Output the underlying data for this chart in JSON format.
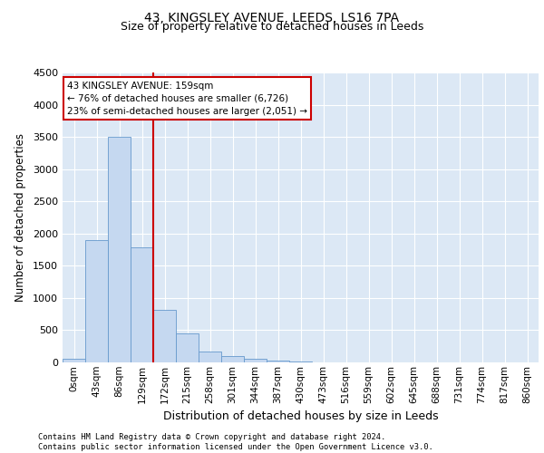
{
  "title1": "43, KINGSLEY AVENUE, LEEDS, LS16 7PA",
  "title2": "Size of property relative to detached houses in Leeds",
  "xlabel": "Distribution of detached houses by size in Leeds",
  "ylabel": "Number of detached properties",
  "bar_labels": [
    "0sqm",
    "43sqm",
    "86sqm",
    "129sqm",
    "172sqm",
    "215sqm",
    "258sqm",
    "301sqm",
    "344sqm",
    "387sqm",
    "430sqm",
    "473sqm",
    "516sqm",
    "559sqm",
    "602sqm",
    "645sqm",
    "688sqm",
    "731sqm",
    "774sqm",
    "817sqm",
    "860sqm"
  ],
  "bar_values": [
    50,
    1900,
    3500,
    1780,
    820,
    450,
    170,
    100,
    55,
    30,
    15,
    0,
    0,
    0,
    0,
    0,
    0,
    0,
    0,
    0,
    0
  ],
  "bar_color": "#c5d8f0",
  "bar_edge_color": "#6699cc",
  "vline_index": 4,
  "vline_color": "#cc0000",
  "annotation_text": "43 KINGSLEY AVENUE: 159sqm\n← 76% of detached houses are smaller (6,726)\n23% of semi-detached houses are larger (2,051) →",
  "annotation_box_facecolor": "#ffffff",
  "annotation_box_edgecolor": "#cc0000",
  "ylim": [
    0,
    4500
  ],
  "yticks": [
    0,
    500,
    1000,
    1500,
    2000,
    2500,
    3000,
    3500,
    4000,
    4500
  ],
  "background_color": "#dce8f5",
  "grid_color": "#ffffff",
  "title1_fontsize": 10,
  "title2_fontsize": 9,
  "footer": "Contains HM Land Registry data © Crown copyright and database right 2024.\nContains public sector information licensed under the Open Government Licence v3.0."
}
